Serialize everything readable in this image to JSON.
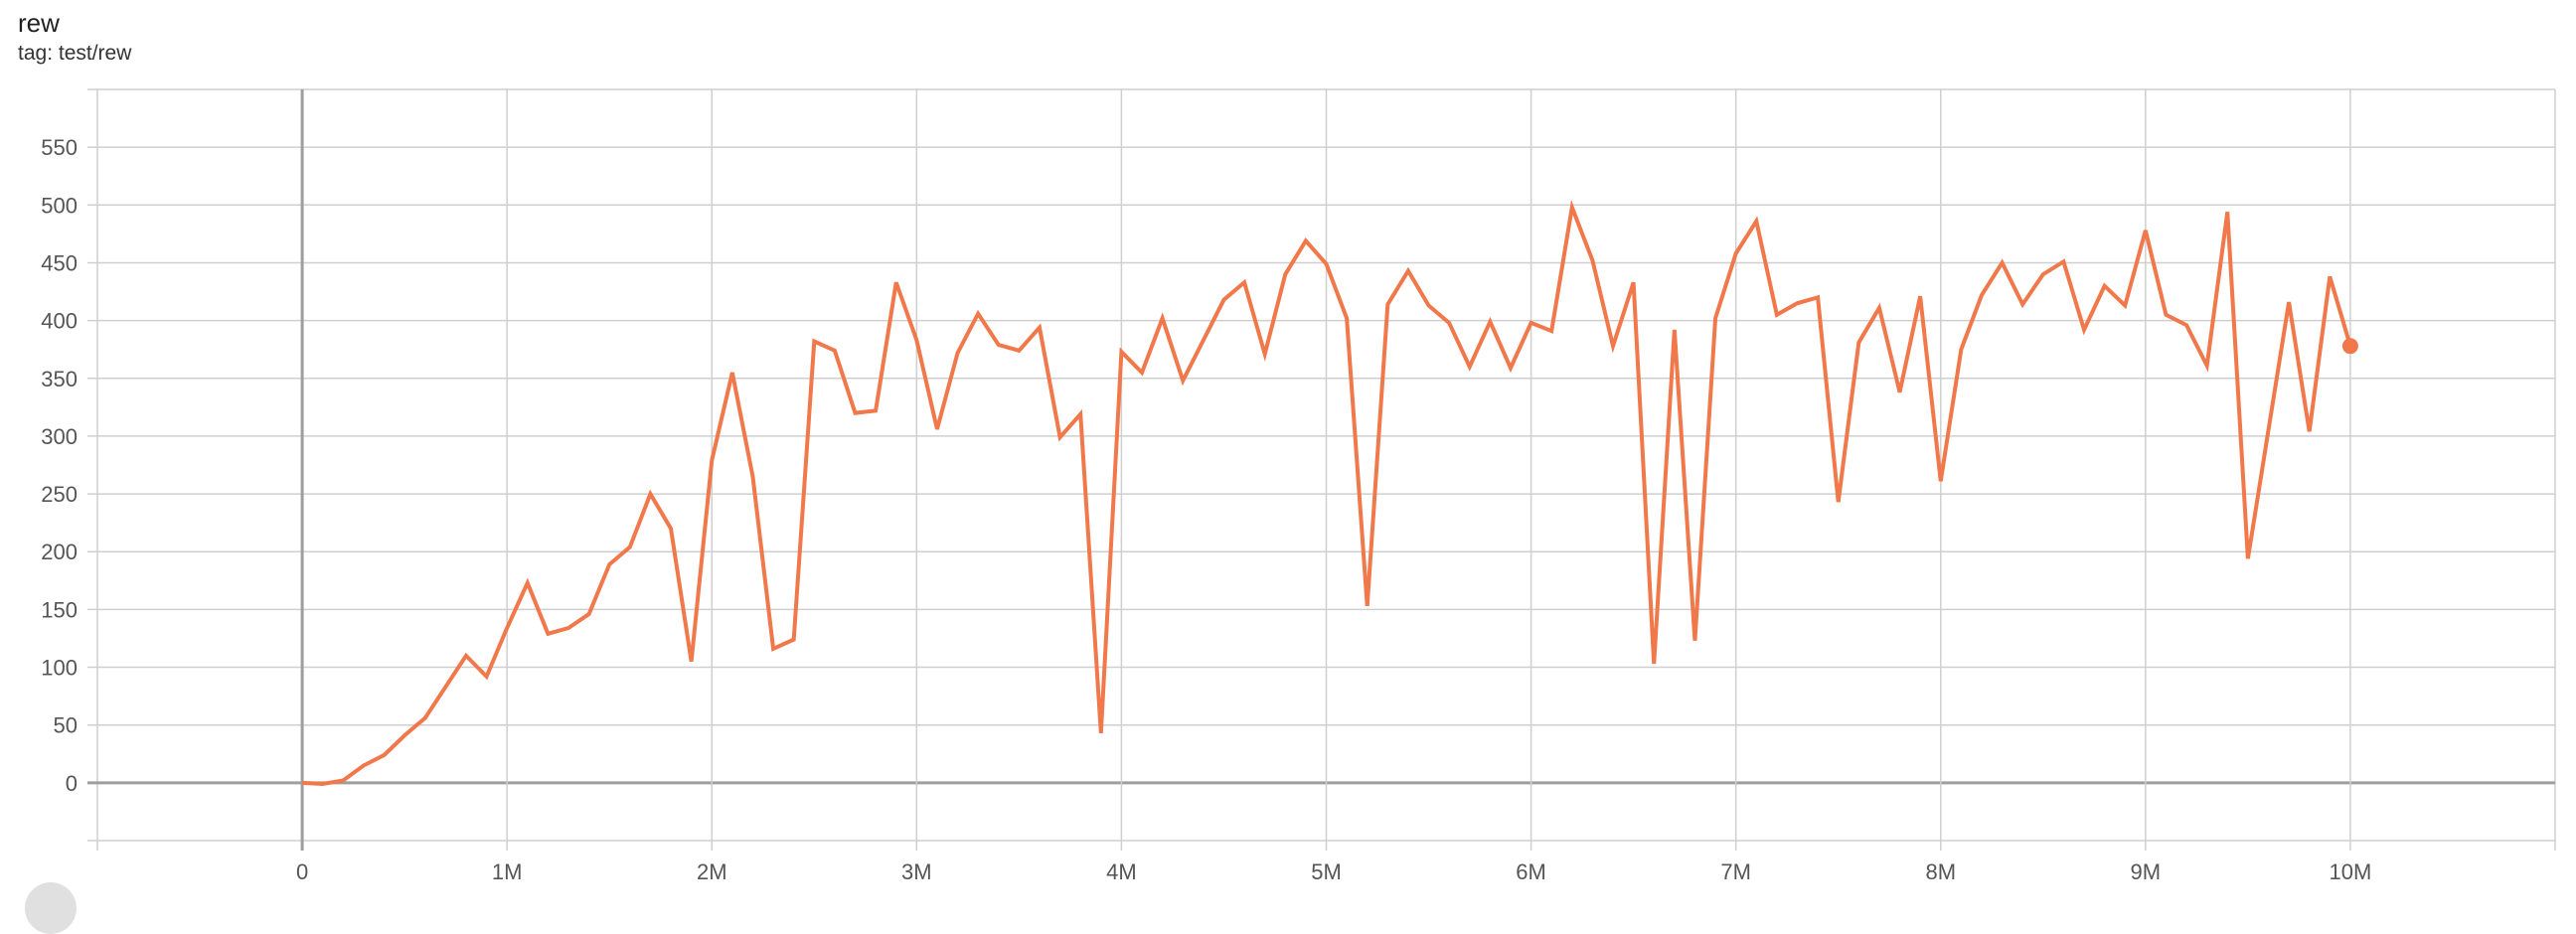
{
  "card": {
    "title": "rew",
    "tag": "tag: test/rew"
  },
  "chart_data": {
    "type": "line",
    "title": "rew",
    "xlabel": "",
    "ylabel": "",
    "xlim": [
      -1000000,
      11000000
    ],
    "ylim": [
      -50,
      600
    ],
    "grid": true,
    "legend": "none",
    "x_ticks": [
      0,
      1000000,
      2000000,
      3000000,
      4000000,
      5000000,
      6000000,
      7000000,
      8000000,
      9000000,
      10000000
    ],
    "x_tick_labels": [
      "0",
      "1M",
      "2M",
      "3M",
      "4M",
      "5M",
      "6M",
      "7M",
      "8M",
      "9M",
      "10M"
    ],
    "y_ticks": [
      0,
      50,
      100,
      150,
      200,
      250,
      300,
      350,
      400,
      450,
      500,
      550
    ],
    "y_tick_labels": [
      "0",
      "50",
      "100",
      "150",
      "200",
      "250",
      "300",
      "350",
      "400",
      "450",
      "500",
      "550"
    ],
    "colors": {
      "line": "#f0784a",
      "grid": "#cfcfcf",
      "zero_axis": "#9e9e9e"
    },
    "series": [
      {
        "x_step": 100000,
        "x_start": 0,
        "values": [
          0,
          -1,
          2,
          15,
          24,
          41,
          56,
          83,
          110,
          92,
          134,
          173,
          129,
          134,
          146,
          189,
          204,
          250,
          220,
          105,
          279,
          355,
          265,
          116,
          124,
          382,
          374,
          320,
          322,
          433,
          383,
          306,
          372,
          406,
          379,
          374,
          394,
          299,
          319,
          43,
          373,
          355,
          402,
          348,
          383,
          418,
          433,
          371,
          440,
          469,
          449,
          402,
          153,
          414,
          443,
          413,
          398,
          360,
          399,
          359,
          398,
          391,
          498,
          452,
          378,
          433,
          103,
          392,
          123,
          402,
          458,
          486,
          405,
          415,
          420,
          243,
          381,
          411,
          338,
          421,
          261,
          375,
          422,
          450,
          414,
          440,
          451,
          392,
          430,
          413,
          478,
          405,
          396,
          361,
          494,
          194,
          305,
          416,
          304,
          438,
          378
        ]
      }
    ]
  }
}
